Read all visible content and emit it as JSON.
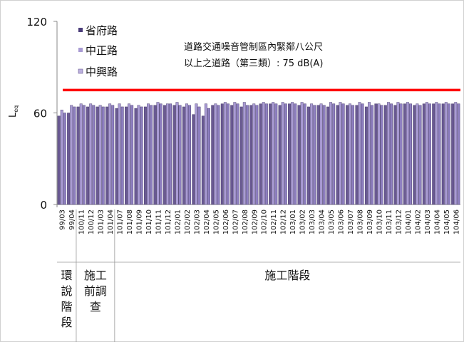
{
  "chart_data": {
    "type": "bar",
    "ylabel": "L_eq",
    "ylim": [
      0,
      120
    ],
    "yticks": [
      0,
      60,
      120
    ],
    "categories": [
      "99/03",
      "99/04",
      "100/11",
      "100/12",
      "101/03",
      "101/04",
      "101/07",
      "101/08",
      "101/09",
      "101/10",
      "101/11",
      "101/12",
      "102/01",
      "102/02",
      "102/03",
      "102/04",
      "102/05",
      "102/06",
      "102/07",
      "102/08",
      "102/09",
      "102/10",
      "102/11",
      "102/12",
      "103/01",
      "103/02",
      "103/03",
      "103/04",
      "103/05",
      "103/06",
      "103/07",
      "103/08",
      "103/09",
      "103/10",
      "103/11",
      "103/12",
      "104/01",
      "104/02",
      "104/03",
      "104/04",
      "104/05",
      "104/06"
    ],
    "series": [
      {
        "name": "省府路",
        "color": "#6a5a93",
        "values": [
          58,
          60,
          64,
          64,
          64,
          64,
          63,
          64,
          63,
          64,
          65,
          65,
          65,
          64,
          59,
          58,
          65,
          66,
          65,
          64,
          65,
          66,
          66,
          65,
          66,
          65,
          64,
          65,
          64,
          65,
          65,
          65,
          64,
          66,
          65,
          65,
          66,
          65,
          66,
          66,
          66,
          66
        ]
      },
      {
        "name": "中正路",
        "color": "#a99bd3",
        "values": [
          62,
          65,
          66,
          66,
          65,
          66,
          66,
          66,
          65,
          66,
          67,
          66,
          67,
          66,
          66,
          66,
          66,
          67,
          67,
          67,
          66,
          67,
          67,
          67,
          67,
          67,
          66,
          66,
          67,
          67,
          66,
          67,
          67,
          66,
          67,
          67,
          67,
          66,
          67,
          67,
          67,
          67
        ]
      },
      {
        "name": "中興路",
        "color": "#8e7fc0",
        "values": [
          60,
          64,
          65,
          65,
          64,
          65,
          64,
          65,
          64,
          65,
          66,
          66,
          65,
          65,
          64,
          63,
          65,
          66,
          66,
          65,
          65,
          66,
          66,
          66,
          66,
          66,
          65,
          65,
          66,
          66,
          65,
          66,
          65,
          65,
          66,
          66,
          66,
          65,
          66,
          66,
          66,
          66
        ]
      }
    ],
    "reference_line": {
      "value": 75,
      "color": "#ff0000"
    },
    "annotation_lines": [
      "道路交通噪音管制區內緊鄰八公尺",
      "以上之道路（第三類）: 75 dB(A)"
    ],
    "phases": [
      {
        "label": "環說階段",
        "start": 0,
        "end": 1
      },
      {
        "label": "施工前調查",
        "start": 2,
        "end": 5
      },
      {
        "label": "施工階段",
        "start": 6,
        "end": 41
      }
    ],
    "legend": {
      "position": "top-left"
    },
    "grid": false
  }
}
